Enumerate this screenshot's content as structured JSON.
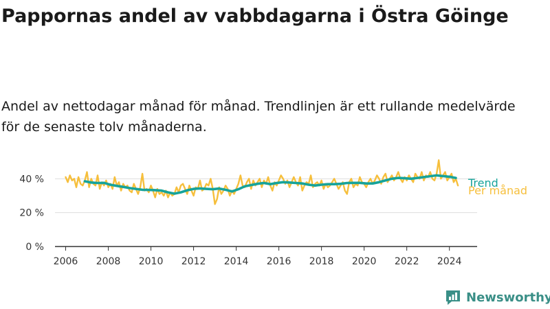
{
  "title": "Pappornas andel av vabbdagarna i Östra Göinge",
  "subtitle": "Andel av nettodagar månad för månad. Trendlinjen är ett rullande medelvärde för de senaste tolv månaderna.",
  "brand": "Newsworthy",
  "colors": {
    "monthly": "#f6bf3c",
    "trend": "#16a39a",
    "axis": "#333333",
    "grid": "#dddddd",
    "brand": "#3a8f87"
  },
  "chart_data": {
    "type": "line",
    "xlabel": "",
    "ylabel": "",
    "xlim": [
      2005.5,
      2025.3
    ],
    "ylim": [
      0,
      45
    ],
    "x_ticks": [
      2006,
      2008,
      2010,
      2012,
      2014,
      2016,
      2018,
      2020,
      2022,
      2024
    ],
    "x_tick_labels": [
      "2006",
      "2008",
      "2010",
      "2012",
      "2014",
      "2016",
      "2018",
      "2020",
      "2022",
      "2024"
    ],
    "y_ticks": [
      0,
      20,
      40
    ],
    "y_tick_labels": [
      "0 %",
      "20 %",
      "40 %"
    ],
    "grid": true,
    "legend": "direct labels at line ends",
    "series": [
      {
        "name": "Trend",
        "x": [
          2006.9,
          2007.2,
          2007.5,
          2007.8,
          2008.1,
          2008.4,
          2008.7,
          2009.0,
          2009.3,
          2009.6,
          2009.9,
          2010.2,
          2010.5,
          2010.8,
          2011.1,
          2011.4,
          2011.7,
          2012.0,
          2012.3,
          2012.6,
          2012.9,
          2013.2,
          2013.5,
          2013.8,
          2014.1,
          2014.4,
          2014.7,
          2015.0,
          2015.3,
          2015.6,
          2015.9,
          2016.2,
          2016.5,
          2016.8,
          2017.1,
          2017.4,
          2017.7,
          2018.0,
          2018.3,
          2018.6,
          2018.9,
          2019.2,
          2019.5,
          2019.8,
          2020.1,
          2020.4,
          2020.7,
          2021.0,
          2021.3,
          2021.6,
          2021.9,
          2022.2,
          2022.5,
          2022.8,
          2023.1,
          2023.4,
          2023.7,
          2024.0,
          2024.3
        ],
        "values": [
          38.5,
          37.8,
          37.5,
          37.6,
          36.5,
          35.8,
          35.2,
          34.5,
          34.0,
          33.5,
          33.4,
          33.3,
          33.0,
          32.0,
          31.2,
          32.0,
          33.2,
          34.0,
          34.3,
          34.0,
          33.8,
          34.2,
          33.5,
          32.5,
          33.8,
          35.5,
          36.3,
          37.0,
          37.5,
          36.8,
          37.5,
          38.0,
          37.8,
          37.5,
          37.2,
          36.5,
          36.0,
          36.5,
          36.8,
          36.8,
          37.0,
          37.5,
          37.6,
          37.6,
          37.2,
          37.2,
          38.0,
          39.0,
          40.0,
          40.5,
          40.3,
          40.0,
          40.5,
          41.0,
          41.5,
          42.0,
          41.6,
          41.2,
          40.5
        ]
      },
      {
        "name": "Per månad",
        "x": [
          2006.0,
          2006.1,
          2006.2,
          2006.3,
          2006.4,
          2006.5,
          2006.6,
          2006.7,
          2006.8,
          2006.9,
          2007.0,
          2007.1,
          2007.2,
          2007.3,
          2007.4,
          2007.5,
          2007.6,
          2007.7,
          2007.8,
          2007.9,
          2008.0,
          2008.1,
          2008.2,
          2008.3,
          2008.4,
          2008.5,
          2008.6,
          2008.7,
          2008.8,
          2008.9,
          2009.0,
          2009.1,
          2009.2,
          2009.3,
          2009.4,
          2009.5,
          2009.6,
          2009.7,
          2009.8,
          2009.9,
          2010.0,
          2010.1,
          2010.2,
          2010.3,
          2010.4,
          2010.5,
          2010.6,
          2010.7,
          2010.8,
          2010.9,
          2011.0,
          2011.1,
          2011.2,
          2011.3,
          2011.4,
          2011.5,
          2011.6,
          2011.7,
          2011.8,
          2011.9,
          2012.0,
          2012.1,
          2012.2,
          2012.3,
          2012.4,
          2012.5,
          2012.6,
          2012.7,
          2012.8,
          2012.9,
          2013.0,
          2013.1,
          2013.2,
          2013.3,
          2013.4,
          2013.5,
          2013.6,
          2013.7,
          2013.8,
          2013.9,
          2014.0,
          2014.1,
          2014.2,
          2014.3,
          2014.4,
          2014.5,
          2014.6,
          2014.7,
          2014.8,
          2014.9,
          2015.0,
          2015.1,
          2015.2,
          2015.3,
          2015.4,
          2015.5,
          2015.6,
          2015.7,
          2015.8,
          2015.9,
          2016.0,
          2016.1,
          2016.2,
          2016.3,
          2016.4,
          2016.5,
          2016.6,
          2016.7,
          2016.8,
          2016.9,
          2017.0,
          2017.1,
          2017.2,
          2017.3,
          2017.4,
          2017.5,
          2017.6,
          2017.7,
          2017.8,
          2017.9,
          2018.0,
          2018.1,
          2018.2,
          2018.3,
          2018.4,
          2018.5,
          2018.6,
          2018.7,
          2018.8,
          2018.9,
          2019.0,
          2019.1,
          2019.2,
          2019.3,
          2019.4,
          2019.5,
          2019.6,
          2019.7,
          2019.8,
          2019.9,
          2020.0,
          2020.1,
          2020.2,
          2020.3,
          2020.4,
          2020.5,
          2020.6,
          2020.7,
          2020.8,
          2020.9,
          2021.0,
          2021.1,
          2021.2,
          2021.3,
          2021.4,
          2021.5,
          2021.6,
          2021.7,
          2021.8,
          2021.9,
          2022.0,
          2022.1,
          2022.2,
          2022.3,
          2022.4,
          2022.5,
          2022.6,
          2022.7,
          2022.8,
          2022.9,
          2023.0,
          2023.1,
          2023.2,
          2023.3,
          2023.4,
          2023.5,
          2023.6,
          2023.7,
          2023.8,
          2023.9,
          2024.0,
          2024.1,
          2024.2,
          2024.3,
          2024.4
        ],
        "values": [
          41,
          38,
          42,
          39,
          40,
          35,
          41,
          37,
          36,
          39,
          44,
          35,
          40,
          37,
          36,
          42,
          34,
          38,
          36,
          39,
          35,
          37,
          34,
          41,
          36,
          38,
          33,
          37,
          35,
          36,
          33,
          32,
          37,
          34,
          31,
          35,
          43,
          33,
          34,
          32,
          36,
          33,
          29,
          34,
          31,
          32,
          30,
          33,
          29,
          32,
          30,
          31,
          35,
          32,
          36,
          37,
          34,
          31,
          36,
          33,
          30,
          35,
          34,
          39,
          33,
          34,
          37,
          36,
          40,
          34,
          25,
          28,
          35,
          31,
          33,
          36,
          34,
          30,
          33,
          31,
          34,
          37,
          42,
          36,
          35,
          38,
          40,
          34,
          39,
          36,
          38,
          40,
          35,
          39,
          37,
          41,
          36,
          33,
          38,
          36,
          39,
          42,
          40,
          37,
          39,
          35,
          38,
          41,
          38,
          36,
          41,
          33,
          36,
          38,
          37,
          42,
          35,
          37,
          38,
          36,
          39,
          34,
          37,
          35,
          36,
          38,
          40,
          37,
          34,
          36,
          38,
          33,
          31,
          38,
          40,
          35,
          37,
          36,
          41,
          38,
          37,
          35,
          38,
          40,
          37,
          39,
          42,
          40,
          37,
          41,
          43,
          38,
          40,
          42,
          39,
          41,
          44,
          40,
          38,
          41,
          39,
          42,
          40,
          38,
          43,
          41,
          40,
          44,
          39,
          42,
          41,
          44,
          40,
          39,
          43,
          51,
          40,
          42,
          44,
          39,
          41,
          43,
          38,
          40,
          36
        ]
      }
    ]
  }
}
